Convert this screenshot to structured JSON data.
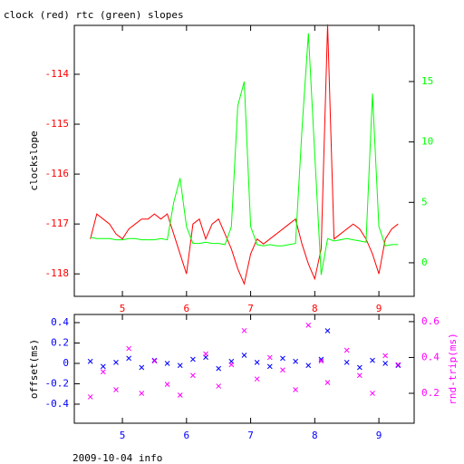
{
  "footer": "2009-10-04 info",
  "chart_data": [
    {
      "type": "line",
      "title": "clock (red) rtc (green) slopes",
      "ylabel": "clockslope",
      "xlim": [
        4.25,
        9.55
      ],
      "ylim": [
        -118.45,
        -113.02
      ],
      "y2lim": [
        -2.78,
        19.65
      ],
      "xticks": [
        5,
        6,
        7,
        8,
        9
      ],
      "yticks": [
        -118,
        -117,
        -116,
        -115,
        -114
      ],
      "y2ticks": [
        0,
        5,
        10,
        15
      ],
      "xtick_color": "#ff0000",
      "ytick_color": "#ff0000",
      "y2tick_color": "#00ff00",
      "series": [
        {
          "name": "clock",
          "color": "#ff0000",
          "x": [
            4.5,
            4.6,
            4.7,
            4.8,
            4.9,
            5.0,
            5.1,
            5.2,
            5.3,
            5.4,
            5.5,
            5.6,
            5.7,
            5.8,
            5.9,
            6.0,
            6.1,
            6.2,
            6.3,
            6.4,
            6.5,
            6.6,
            6.7,
            6.8,
            6.9,
            7.0,
            7.1,
            7.2,
            7.3,
            7.4,
            7.5,
            7.6,
            7.7,
            7.8,
            7.9,
            8.0,
            8.1,
            8.2,
            8.3,
            8.4,
            8.5,
            8.6,
            8.7,
            8.8,
            8.9,
            9.0,
            9.1,
            9.2,
            9.3
          ],
          "values": [
            -117.3,
            -116.8,
            -116.9,
            -117.0,
            -117.2,
            -117.3,
            -117.1,
            -117.0,
            -116.9,
            -116.9,
            -116.8,
            -116.9,
            -116.8,
            -117.2,
            -117.6,
            -118.0,
            -117.0,
            -116.9,
            -117.3,
            -117.0,
            -116.9,
            -117.2,
            -117.5,
            -117.9,
            -118.2,
            -117.6,
            -117.3,
            -117.4,
            -117.3,
            -117.2,
            -117.1,
            -117.0,
            -116.9,
            -117.4,
            -117.8,
            -118.1,
            -117.5,
            -113.0,
            -117.3,
            -117.2,
            -117.1,
            -117.0,
            -117.1,
            -117.3,
            -117.6,
            -118.0,
            -117.3,
            -117.1,
            -117.0
          ]
        },
        {
          "name": "rtc",
          "color": "#00ff00",
          "axis": "y2",
          "x": [
            4.5,
            4.6,
            4.7,
            4.8,
            4.9,
            5.0,
            5.1,
            5.2,
            5.3,
            5.4,
            5.5,
            5.6,
            5.7,
            5.8,
            5.9,
            6.0,
            6.1,
            6.2,
            6.3,
            6.4,
            6.5,
            6.6,
            6.7,
            6.8,
            6.9,
            7.0,
            7.1,
            7.2,
            7.3,
            7.4,
            7.5,
            7.6,
            7.7,
            7.8,
            7.9,
            8.0,
            8.1,
            8.2,
            8.3,
            8.4,
            8.5,
            8.6,
            8.7,
            8.8,
            8.9,
            9.0,
            9.1,
            9.2,
            9.3
          ],
          "values": [
            2.1,
            2.0,
            2.0,
            2.0,
            1.9,
            1.9,
            2.0,
            2.0,
            1.9,
            1.9,
            1.9,
            2.0,
            1.9,
            5.0,
            7.0,
            3.0,
            1.6,
            1.6,
            1.7,
            1.6,
            1.6,
            1.5,
            3.0,
            13.0,
            15.0,
            3.0,
            1.5,
            1.4,
            1.5,
            1.4,
            1.4,
            1.5,
            1.6,
            11.0,
            19.0,
            9.0,
            -1.0,
            2.0,
            1.8,
            1.9,
            2.0,
            1.9,
            1.8,
            1.7,
            14.0,
            3.0,
            1.4,
            1.5,
            1.5
          ]
        }
      ]
    },
    {
      "type": "scatter",
      "ylabel": "offset(ms)",
      "y2label": "rnd-trip(ms)",
      "xlim": [
        4.25,
        9.55
      ],
      "ylim": [
        -0.587,
        0.48
      ],
      "y2lim": [
        0.033,
        0.64
      ],
      "xticks": [
        5,
        6,
        7,
        8,
        9
      ],
      "yticks": [
        -0.4,
        -0.2,
        0,
        0.2,
        0.4
      ],
      "y2ticks": [
        0.2,
        0.4,
        0.6
      ],
      "xtick_color": "#0000ff",
      "ytick_color": "#0000ff",
      "y2tick_color": "#ff00ff",
      "series": [
        {
          "name": "offset",
          "color": "#0000ff",
          "x": [
            4.5,
            4.7,
            4.9,
            5.1,
            5.3,
            5.5,
            5.7,
            5.9,
            6.1,
            6.3,
            6.5,
            6.7,
            6.9,
            7.1,
            7.3,
            7.5,
            7.7,
            7.9,
            8.1,
            8.2,
            8.5,
            8.7,
            8.9,
            9.1,
            9.3
          ],
          "values": [
            0.02,
            -0.03,
            0.01,
            0.05,
            -0.04,
            0.03,
            0.0,
            -0.02,
            0.04,
            0.06,
            -0.05,
            0.02,
            0.08,
            0.01,
            -0.03,
            0.05,
            0.02,
            -0.02,
            0.04,
            0.32,
            0.01,
            -0.04,
            0.03,
            0.0,
            -0.02
          ]
        },
        {
          "name": "rnd-trip",
          "color": "#ff00ff",
          "axis": "y2",
          "x": [
            4.5,
            4.7,
            4.9,
            5.1,
            5.3,
            5.5,
            5.7,
            5.9,
            6.1,
            6.3,
            6.5,
            6.7,
            6.9,
            7.1,
            7.3,
            7.5,
            7.7,
            7.9,
            8.1,
            8.2,
            8.5,
            8.7,
            8.9,
            9.1,
            9.3
          ],
          "values": [
            0.18,
            0.32,
            0.22,
            0.45,
            0.2,
            0.38,
            0.25,
            0.19,
            0.3,
            0.42,
            0.24,
            0.36,
            0.55,
            0.28,
            0.4,
            0.33,
            0.22,
            0.58,
            0.38,
            0.26,
            0.44,
            0.3,
            0.2,
            0.41,
            0.36
          ]
        }
      ]
    }
  ]
}
